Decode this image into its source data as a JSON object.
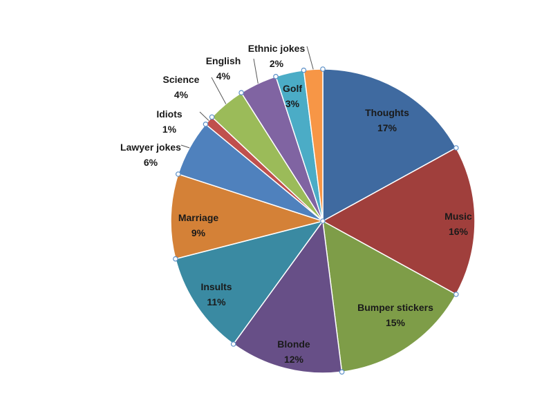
{
  "chart_data": {
    "type": "pie",
    "title": "",
    "slices": [
      {
        "label": "Thoughts",
        "value": 17,
        "pct_label": "17%",
        "color": "#3f6aa0"
      },
      {
        "label": "Music",
        "value": 16,
        "pct_label": "16%",
        "color": "#a03f3c"
      },
      {
        "label": "Bumper stickers",
        "value": 15,
        "pct_label": "15%",
        "color": "#7e9d48"
      },
      {
        "label": "Blonde",
        "value": 12,
        "pct_label": "12%",
        "color": "#674f87"
      },
      {
        "label": "Insults",
        "value": 11,
        "pct_label": "11%",
        "color": "#3a8aa2"
      },
      {
        "label": "Marriage",
        "value": 9,
        "pct_label": "9%",
        "color": "#d48137"
      },
      {
        "label": "Lawyer jokes",
        "value": 6,
        "pct_label": "6%",
        "color": "#4f81bd"
      },
      {
        "label": "Idiots",
        "value": 1,
        "pct_label": "1%",
        "color": "#c0504d"
      },
      {
        "label": "Science",
        "value": 4,
        "pct_label": "4%",
        "color": "#9bbb59"
      },
      {
        "label": "English",
        "value": 4,
        "pct_label": "4%",
        "color": "#8064a2"
      },
      {
        "label": "Golf",
        "value": 3,
        "pct_label": "3%",
        "color": "#4bacc6"
      },
      {
        "label": "Ethnic jokes",
        "value": 2,
        "pct_label": "2%",
        "color": "#f79646"
      }
    ]
  }
}
